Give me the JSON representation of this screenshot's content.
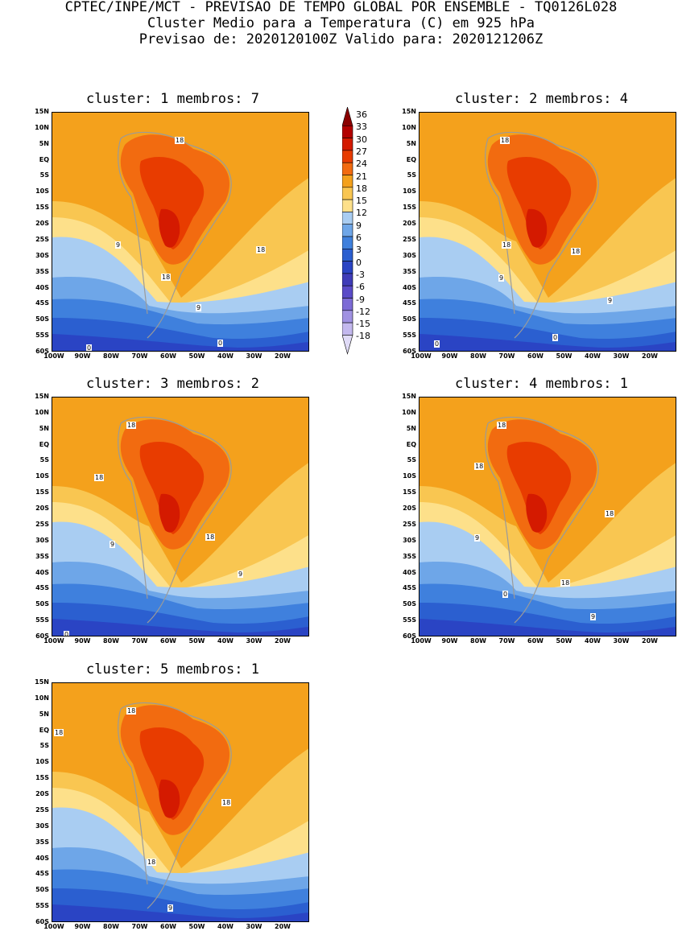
{
  "header": {
    "line1": "CPTEC/INPE/MCT - PREVISAO DE TEMPO GLOBAL POR ENSEMBLE - TQ0126L028",
    "line2": "Cluster Medio para a Temperatura (C) em 925 hPa",
    "line3": "Previsao de: 2020120100Z   Valido para: 2020121206Z"
  },
  "axes": {
    "y_ticks": [
      "15N",
      "10N",
      "5N",
      "EQ",
      "5S",
      "10S",
      "15S",
      "20S",
      "25S",
      "30S",
      "35S",
      "40S",
      "45S",
      "50S",
      "55S",
      "60S"
    ],
    "x_ticks": [
      "100W",
      "90W",
      "80W",
      "70W",
      "60W",
      "50W",
      "40W",
      "30W",
      "20W"
    ]
  },
  "colorbar": {
    "labels": [
      "36",
      "33",
      "30",
      "27",
      "24",
      "21",
      "18",
      "15",
      "12",
      "9",
      "6",
      "3",
      "0",
      "-3",
      "-6",
      "-9",
      "-12",
      "-15",
      "-18"
    ],
    "colors": [
      "#8b0000",
      "#b30000",
      "#d41a00",
      "#e83c00",
      "#f26b10",
      "#f4a11c",
      "#f9c651",
      "#fde08a",
      "#a9cdf2",
      "#6ea6e8",
      "#3f80dd",
      "#2b5fd0",
      "#2a44c4",
      "#3f3cb8",
      "#5a4bc8",
      "#7c6bd6",
      "#a091e2",
      "#c3b8ee",
      "#e0dbf7"
    ]
  },
  "panels": [
    {
      "title": "cluster: 1   membros: 7",
      "contour_labels": [
        "18",
        "18",
        "9",
        "18",
        "9",
        "0",
        "0"
      ]
    },
    {
      "title": "cluster: 2   membros: 4",
      "contour_labels": [
        "18",
        "18",
        "9",
        "18",
        "9",
        "0",
        "0"
      ]
    },
    {
      "title": "cluster: 3   membros: 2",
      "contour_labels": [
        "18",
        "18",
        "9",
        "18",
        "9",
        "0"
      ]
    },
    {
      "title": "cluster: 4   membros: 1",
      "contour_labels": [
        "18",
        "18",
        "9",
        "18",
        "18",
        "0",
        "9"
      ]
    },
    {
      "title": "cluster: 5   membros: 1",
      "contour_labels": [
        "18",
        "18",
        "18",
        "18",
        "9"
      ]
    }
  ]
}
